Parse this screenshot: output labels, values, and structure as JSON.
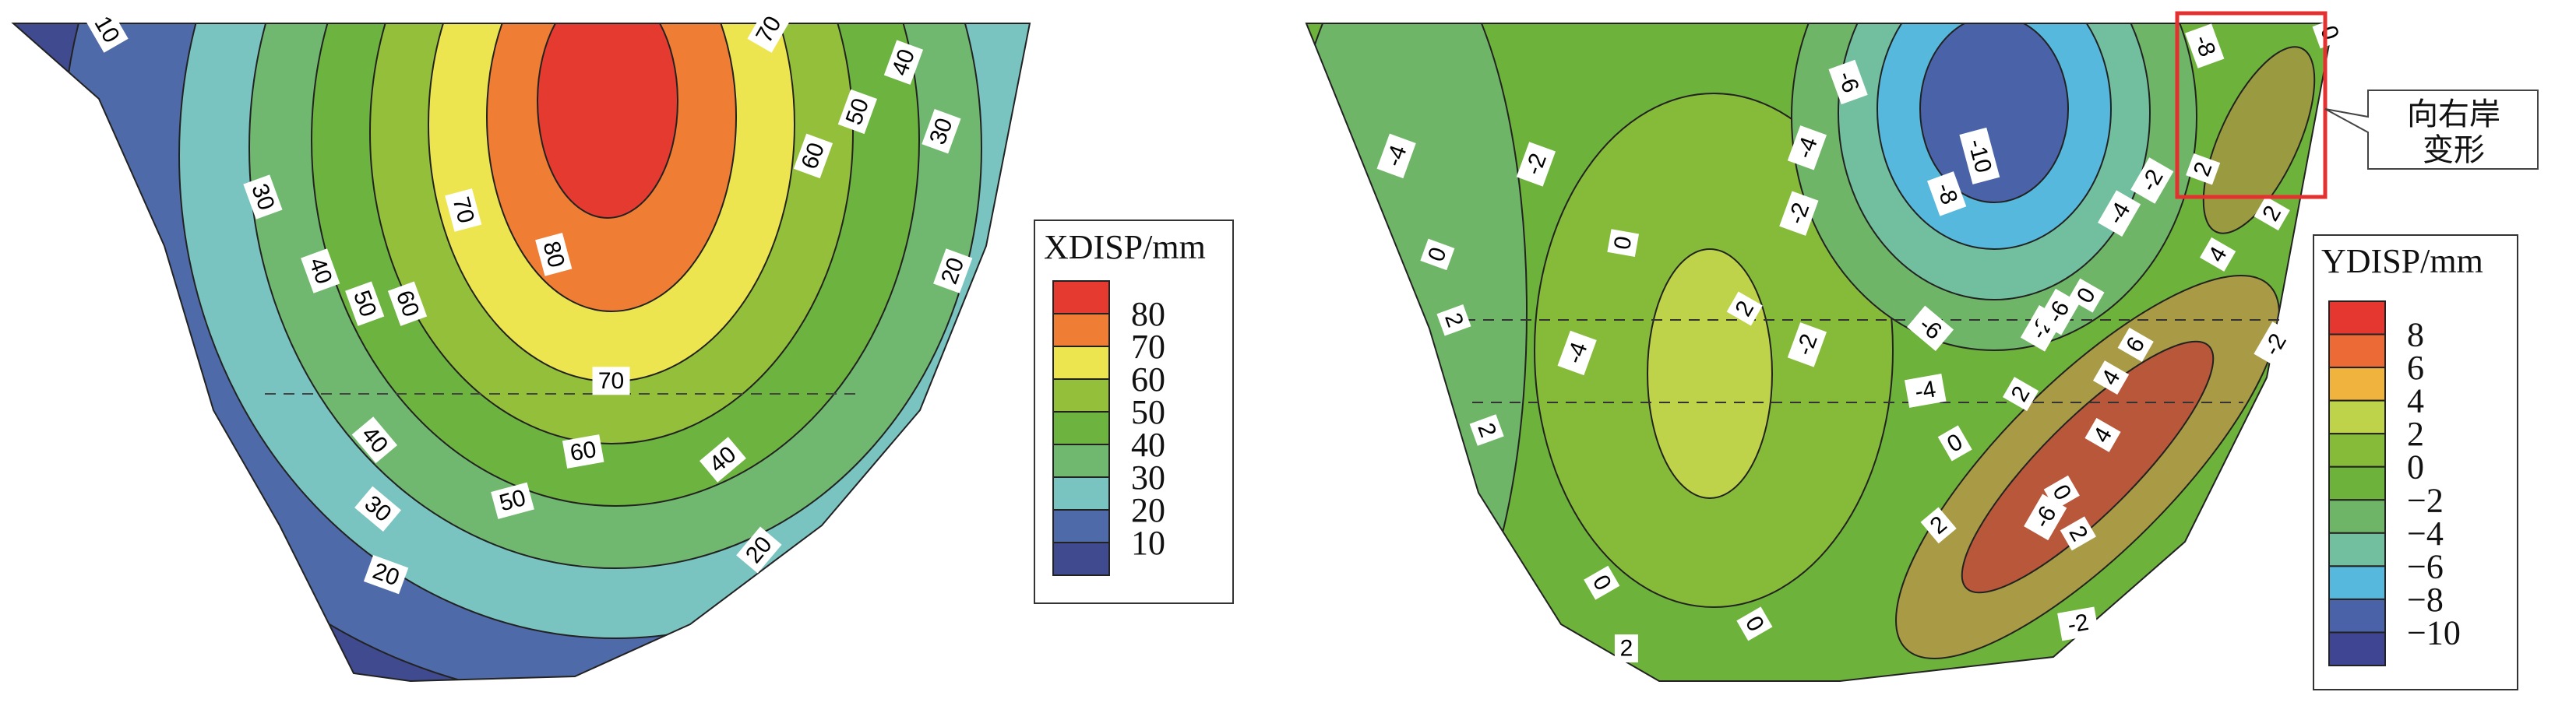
{
  "chart_data": [
    {
      "type": "heatmap",
      "subtype": "filled-contour",
      "legend": {
        "title": "XDISP/mm",
        "placement": "right",
        "levels": [
          "80",
          "70",
          "60",
          "50",
          "40",
          "30",
          "20",
          "10"
        ],
        "colors": [
          "#e53a2f",
          "#ef7d34",
          "#ede550",
          "#93bf3b",
          "#6cb33f",
          "#70b86f",
          "#79c3c0",
          "#4f6aa8",
          "#3f4a8f"
        ]
      },
      "contour_labels": [
        "10",
        "70",
        "30",
        "70",
        "80",
        "60",
        "50",
        "40",
        "30",
        "40",
        "50",
        "60",
        "20",
        "70",
        "60",
        "40",
        "40",
        "30",
        "50",
        "20",
        "20"
      ]
    },
    {
      "type": "heatmap",
      "subtype": "filled-contour",
      "legend": {
        "title": "YDISP/mm",
        "placement": "right",
        "levels": [
          "8",
          "6",
          "4",
          "2",
          "0",
          "−2",
          "−4",
          "−6",
          "−8",
          "−10"
        ],
        "colors": [
          "#e5372f",
          "#ec6a35",
          "#f0b43e",
          "#bed34a",
          "#86bb3a",
          "#6db23a",
          "#6fb567",
          "#72bfa0",
          "#55b8dc",
          "#4a63a8",
          "#3f4592"
        ]
      },
      "contour_labels": [
        "-4",
        "-2",
        "-6",
        "-8",
        "0",
        "-4",
        "-10",
        "-8",
        "-2",
        "-2",
        "2",
        "0",
        "0",
        "-4",
        "2",
        "-2",
        "-6",
        "-6",
        "0",
        "4",
        "2",
        "2",
        "-2",
        "-4",
        "6",
        "-2",
        "-4",
        "2",
        "4",
        "0",
        "2",
        "4",
        "0",
        "2",
        "-6",
        "-2",
        "0",
        "2",
        "0",
        "2"
      ],
      "annotation": {
        "text_line1": "向右岸",
        "text_line2": "变形"
      }
    }
  ]
}
